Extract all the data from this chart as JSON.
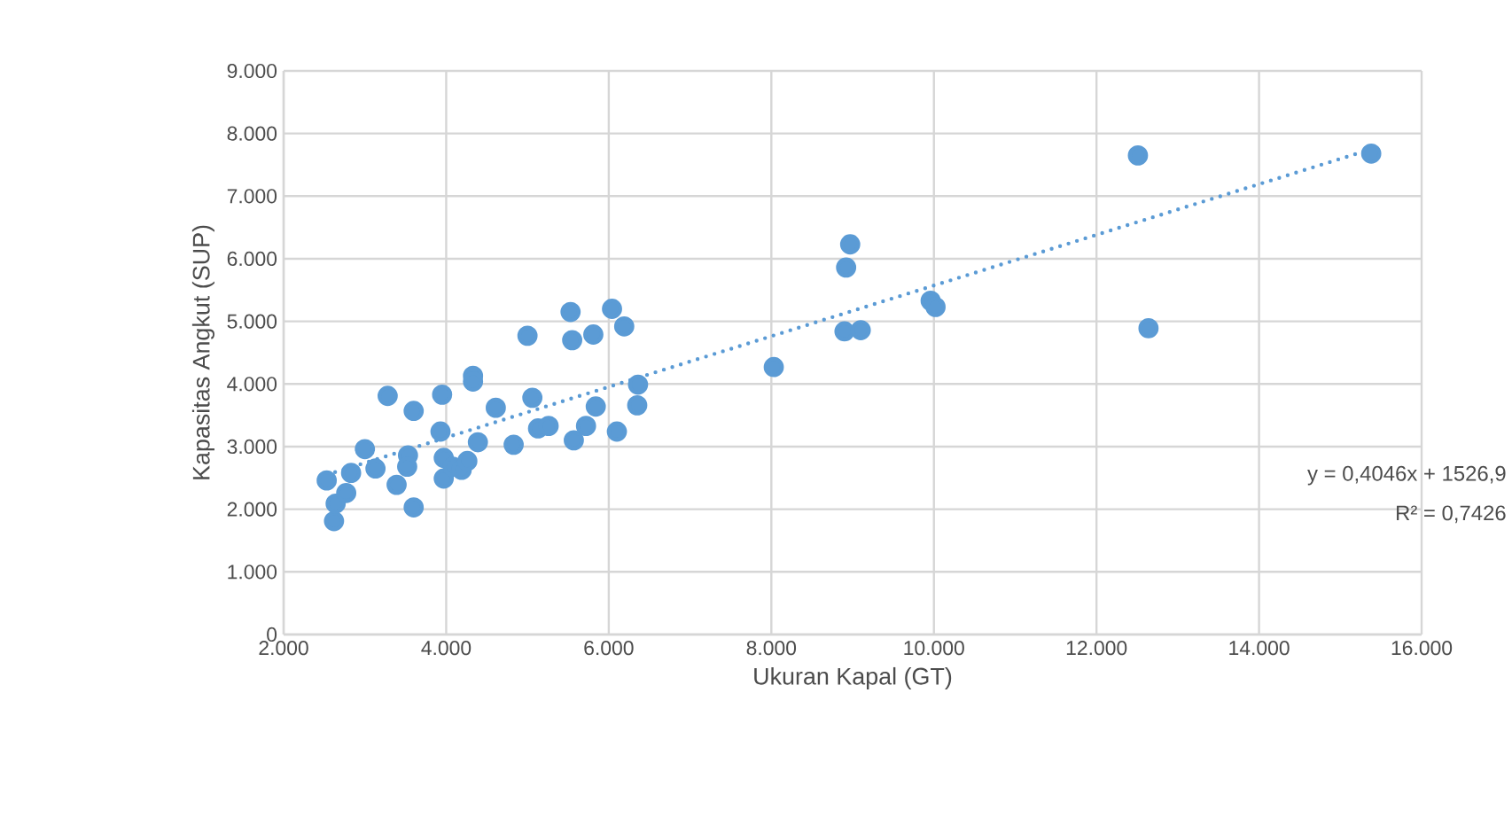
{
  "chart_data": {
    "type": "scatter",
    "xlabel": "Ukuran Kapal (GT)",
    "ylabel": "Kapasitas  Angkut (SUP)",
    "xlim": [
      2000,
      16000
    ],
    "ylim": [
      0,
      9000
    ],
    "xticks": [
      {
        "value": 2000,
        "label": "2.000"
      },
      {
        "value": 4000,
        "label": "4.000"
      },
      {
        "value": 6000,
        "label": "6.000"
      },
      {
        "value": 8000,
        "label": "8.000"
      },
      {
        "value": 10000,
        "label": "10.000"
      },
      {
        "value": 12000,
        "label": "12.000"
      },
      {
        "value": 14000,
        "label": "14.000"
      },
      {
        "value": 16000,
        "label": "16.000"
      }
    ],
    "yticks": [
      {
        "value": 0,
        "label": "0"
      },
      {
        "value": 1000,
        "label": "1.000"
      },
      {
        "value": 2000,
        "label": "2.000"
      },
      {
        "value": 3000,
        "label": "3.000"
      },
      {
        "value": 4000,
        "label": "4.000"
      },
      {
        "value": 5000,
        "label": "5.000"
      },
      {
        "value": 6000,
        "label": "6.000"
      },
      {
        "value": 7000,
        "label": "7.000"
      },
      {
        "value": 8000,
        "label": "8.000"
      },
      {
        "value": 9000,
        "label": "9.000"
      }
    ],
    "grid": true,
    "legend": false,
    "series": [
      {
        "color": "#5b9bd5",
        "marker": "circle",
        "x": [
          2530,
          2620,
          2640,
          2770,
          2830,
          3000,
          3130,
          3280,
          3390,
          3530,
          3520,
          3600,
          3600,
          3950,
          3930,
          3970,
          3970,
          4080,
          4190,
          4260,
          4330,
          4330,
          4390,
          4610,
          4830,
          5000,
          5060,
          5130,
          5260,
          5530,
          5550,
          5570,
          5720,
          5810,
          5840,
          6040,
          6190,
          6100,
          6360,
          6350,
          8030,
          8970,
          8920,
          8900,
          9100,
          9960,
          10020,
          12510,
          12640,
          15380
        ],
        "values": [
          2460,
          1810,
          2090,
          2260,
          2580,
          2960,
          2650,
          3810,
          2390,
          2860,
          2680,
          3570,
          2030,
          3830,
          3240,
          2820,
          2490,
          2680,
          2630,
          2770,
          4130,
          4040,
          3070,
          3620,
          3030,
          4770,
          3780,
          3290,
          3330,
          5150,
          4700,
          3100,
          3330,
          4790,
          3640,
          5200,
          4920,
          3240,
          3990,
          3660,
          4270,
          6230,
          5860,
          4840,
          4860,
          5330,
          5230,
          7650,
          4890,
          7680
        ]
      },
      {
        "type": "line",
        "color": "#5b9bd5",
        "line_style": "dotted",
        "marker": "none",
        "x": [
          2530,
          15380
        ],
        "values": [
          2550,
          7750
        ]
      }
    ],
    "annotations": [
      "y = 0,4046x + 1526,9",
      "R² = 0,7426"
    ]
  }
}
